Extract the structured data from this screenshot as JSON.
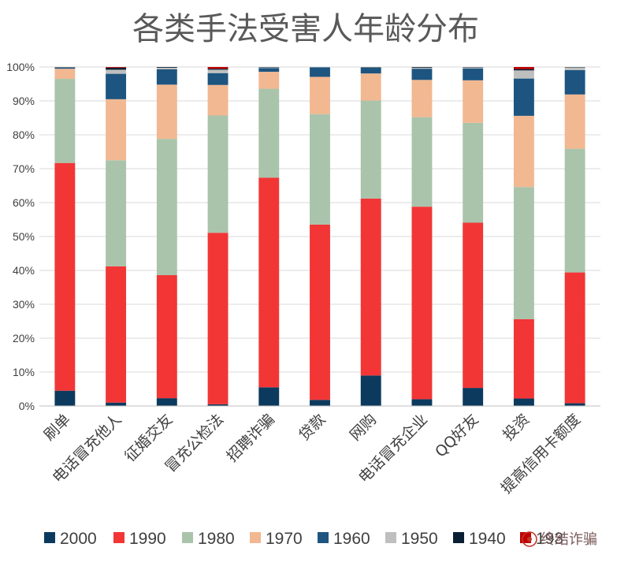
{
  "chart_data": {
    "type": "bar",
    "stacked": true,
    "normalized": true,
    "title": "各类手法受害人年龄分布",
    "xlabel": "",
    "ylabel": "",
    "ylim": [
      0,
      100
    ],
    "yticks": [
      "0%",
      "10%",
      "20%",
      "30%",
      "40%",
      "50%",
      "60%",
      "70%",
      "80%",
      "90%",
      "100%"
    ],
    "grid": true,
    "legend_position": "bottom",
    "categories": [
      "刷单",
      "电话冒充他人",
      "征婚交友",
      "冒充公检法",
      "招聘诈骗",
      "贷款",
      "网购",
      "电话冒充企业",
      "QQ好友",
      "投资",
      "提高信用卡额度"
    ],
    "series": [
      {
        "name": "2000",
        "color": "#0c3a5e",
        "values": [
          4.5,
          1.0,
          2.3,
          0.5,
          5.5,
          1.8,
          9.0,
          2.0,
          5.3,
          2.2,
          0.8
        ]
      },
      {
        "name": "1990",
        "color": "#f23636",
        "values": [
          67.2,
          40.2,
          36.3,
          50.6,
          61.8,
          51.7,
          52.2,
          56.8,
          48.5,
          23.4,
          38.6
        ]
      },
      {
        "name": "1980",
        "color": "#a9c4ab",
        "values": [
          24.8,
          31.3,
          40.2,
          34.6,
          26.2,
          32.6,
          28.9,
          26.4,
          29.3,
          39.0,
          36.5
        ]
      },
      {
        "name": "1970",
        "color": "#f1b891",
        "values": [
          3.0,
          18.0,
          16.0,
          9.0,
          5.0,
          11.0,
          8.0,
          11.0,
          12.5,
          21.0,
          16.0
        ]
      },
      {
        "name": "1960",
        "color": "#1d5580",
        "values": [
          0.3,
          7.5,
          4.5,
          3.5,
          1.1,
          2.8,
          1.7,
          3.3,
          3.5,
          11.0,
          7.2
        ]
      },
      {
        "name": "1950",
        "color": "#bfbfbf",
        "values": [
          0.1,
          1.2,
          0.5,
          1.0,
          0.2,
          0.1,
          0.1,
          0.3,
          0.3,
          2.4,
          0.8
        ]
      },
      {
        "name": "1940",
        "color": "#0a1f33",
        "values": [
          0.1,
          0.6,
          0.2,
          0.3,
          0.1,
          0.0,
          0.1,
          0.2,
          0.1,
          0.4,
          0.1
        ]
      },
      {
        "name": "193",
        "color": "#c00000",
        "values": [
          0.0,
          0.2,
          0.0,
          0.5,
          0.0,
          0.0,
          0.0,
          0.0,
          0.0,
          0.6,
          0.0
        ]
      }
    ]
  },
  "watermark": {
    "text": "终结诈骗"
  }
}
